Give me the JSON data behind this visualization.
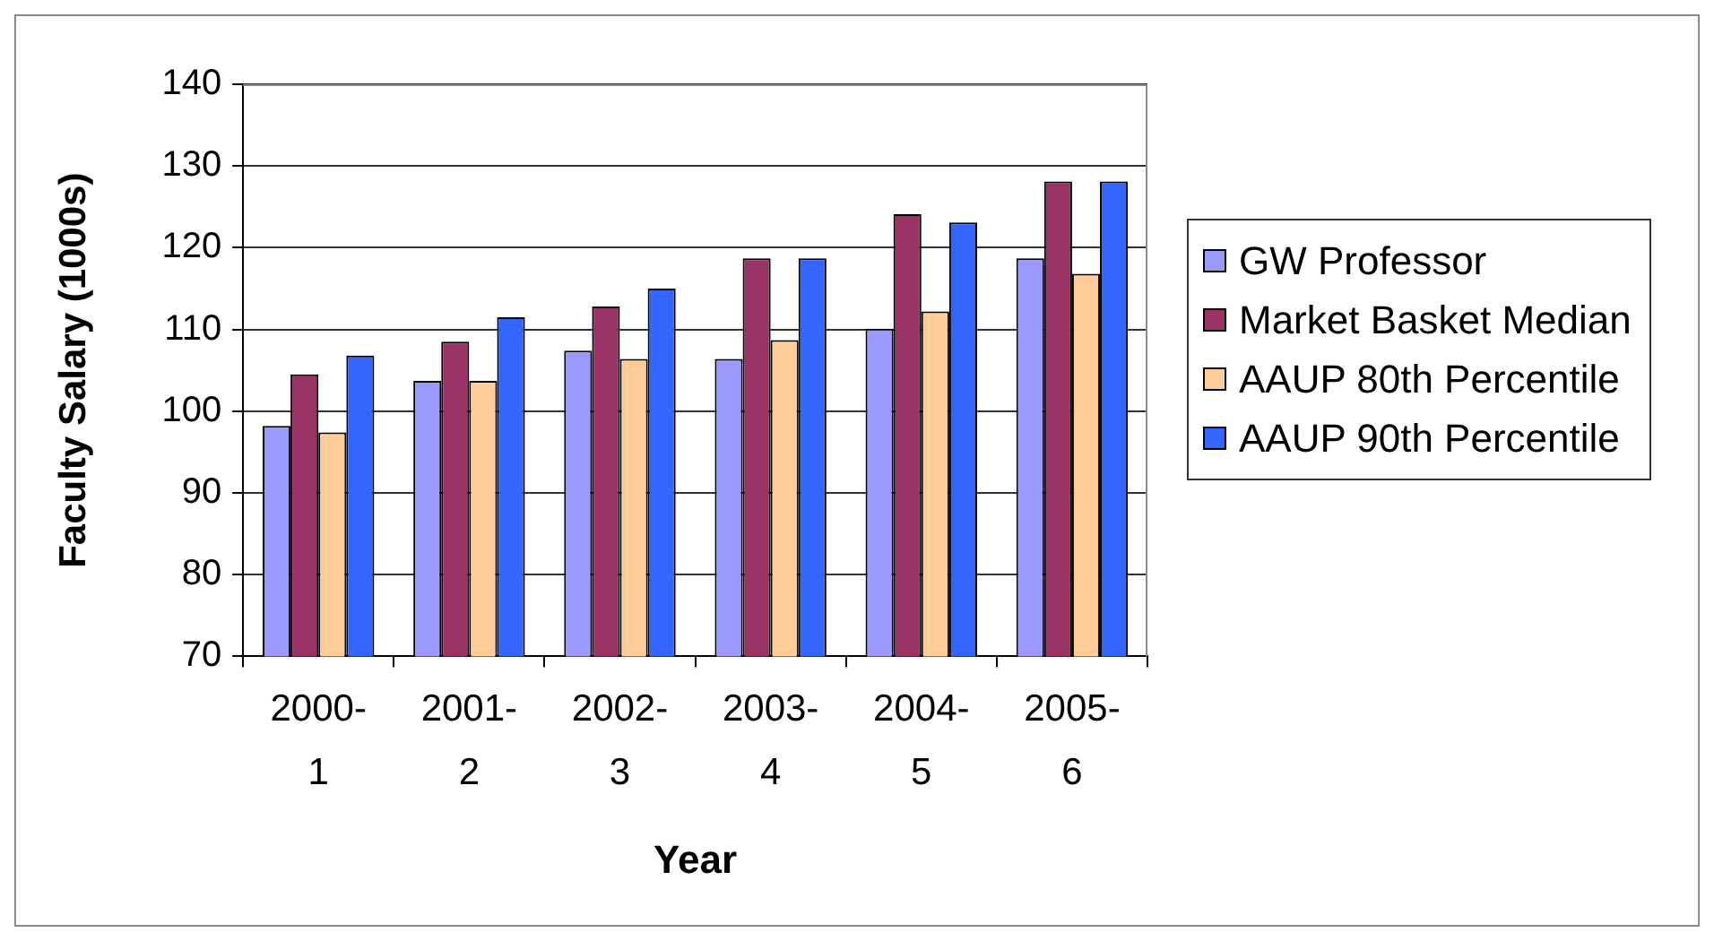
{
  "chart_data": {
    "type": "bar",
    "xlabel": "Year",
    "ylabel": "Faculty Salary (1000s)",
    "categories": [
      "2000-1",
      "2001-2",
      "2002-3",
      "2003-4",
      "2004-5",
      "2005-6"
    ],
    "series": [
      {
        "name": "GW Professor",
        "color": "#9999ff",
        "values": [
          98.2,
          103.7,
          107.4,
          106.4,
          110.1,
          118.7
        ]
      },
      {
        "name": "Market Basket Median",
        "color": "#993366",
        "values": [
          104.5,
          108.5,
          112.8,
          118.7,
          124.1,
          128.1
        ]
      },
      {
        "name": "AAUP 80th Percentile",
        "color": "#ffcc99",
        "values": [
          97.4,
          103.7,
          106.4,
          108.7,
          112.2,
          116.8
        ]
      },
      {
        "name": "AAUP 90th Percentile",
        "color": "#3366ff",
        "values": [
          106.8,
          111.5,
          115.0,
          118.7,
          123.1,
          128.1
        ]
      }
    ],
    "ylim": [
      70,
      140
    ],
    "yticks": [
      70,
      80,
      90,
      100,
      110,
      120,
      130,
      140
    ],
    "grid": "y",
    "legend": "right"
  }
}
